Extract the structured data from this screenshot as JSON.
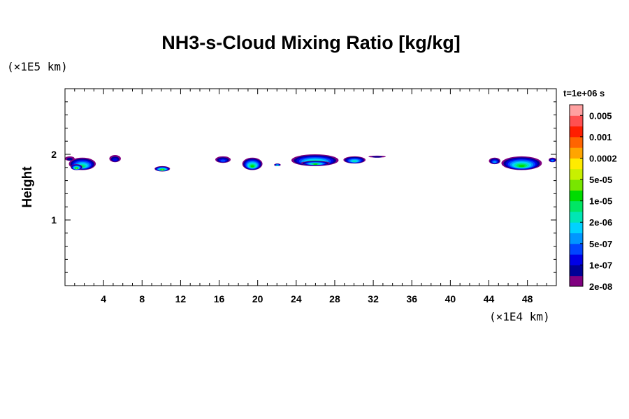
{
  "chart_data": {
    "type": "heatmap",
    "title": "NH3-s-Cloud Mixing Ratio [kg/kg]",
    "xlabel": "",
    "ylabel": "Height",
    "x_unit": "(×1E4 km)",
    "y_unit": "(×1E5 km)",
    "time_label": "t=1e+06 s",
    "xlim": [
      0,
      51
    ],
    "ylim": [
      0,
      3
    ],
    "x_ticks": [
      4,
      8,
      12,
      16,
      20,
      24,
      28,
      32,
      36,
      40,
      44,
      48
    ],
    "y_ticks": [
      1,
      2
    ],
    "colorbar": {
      "labels": [
        "0.005",
        "0.001",
        "0.0002",
        "5e-05",
        "1e-05",
        "2e-06",
        "5e-07",
        "1e-07",
        "2e-08"
      ],
      "colors": [
        "#800080",
        "#000096",
        "#0000e6",
        "#0046ff",
        "#0096ff",
        "#00d2ff",
        "#00e6b4",
        "#00e664",
        "#00dc00",
        "#78e600",
        "#c8f000",
        "#ffeb00",
        "#ffa500",
        "#ff6400",
        "#ff1e00",
        "#ff5050",
        "#ffa0a0"
      ]
    },
    "cloud_patches": [
      {
        "x": [
          0.0,
          1.0
        ],
        "y": [
          1.9,
          1.97
        ],
        "level": 1
      },
      {
        "x": [
          0.4,
          3.2
        ],
        "y": [
          1.76,
          1.95
        ],
        "level": 7
      },
      {
        "x": [
          0.6,
          1.8
        ],
        "y": [
          1.76,
          1.85
        ],
        "level": 9
      },
      {
        "x": [
          4.6,
          5.8
        ],
        "y": [
          1.88,
          1.99
        ],
        "level": 2
      },
      {
        "x": [
          9.3,
          10.9
        ],
        "y": [
          1.74,
          1.82
        ],
        "level": 9
      },
      {
        "x": [
          15.6,
          17.2
        ],
        "y": [
          1.87,
          1.97
        ],
        "level": 3
      },
      {
        "x": [
          18.4,
          20.5
        ],
        "y": [
          1.76,
          1.95
        ],
        "level": 8
      },
      {
        "x": [
          21.7,
          22.4
        ],
        "y": [
          1.82,
          1.86
        ],
        "level": 6
      },
      {
        "x": [
          23.5,
          28.4
        ],
        "y": [
          1.82,
          2.0
        ],
        "level": 8
      },
      {
        "x": [
          24.5,
          27.5
        ],
        "y": [
          1.83,
          1.9
        ],
        "level": 8
      },
      {
        "x": [
          28.9,
          31.2
        ],
        "y": [
          1.86,
          1.97
        ],
        "level": 6
      },
      {
        "x": [
          31.5,
          33.3
        ],
        "y": [
          1.95,
          1.98
        ],
        "level": 1
      },
      {
        "x": [
          44.0,
          45.2
        ],
        "y": [
          1.85,
          1.95
        ],
        "level": 4
      },
      {
        "x": [
          45.3,
          49.5
        ],
        "y": [
          1.76,
          1.97
        ],
        "level": 8
      },
      {
        "x": [
          50.2,
          51.0
        ],
        "y": [
          1.88,
          1.95
        ],
        "level": 4
      }
    ]
  }
}
